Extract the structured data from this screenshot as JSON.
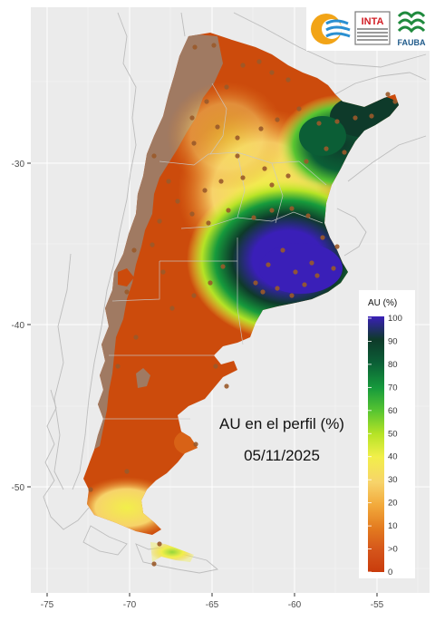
{
  "map": {
    "title_line1": "AU en el perfil (%)",
    "title_line2": "05/11/2025",
    "x_ticks": [
      "-75",
      "-70",
      "-65",
      "-60",
      "-55"
    ],
    "y_ticks": [
      "-30",
      "-40",
      "-50"
    ]
  },
  "legend": {
    "title": "AU (%)",
    "labels": [
      "100",
      "90",
      "80",
      "70",
      "60",
      "50",
      "40",
      "30",
      "20",
      "10",
      ">0",
      "0"
    ],
    "colors": [
      "#3a1fb8",
      "#0e3a2a",
      "#0b5e36",
      "#169a3c",
      "#58c531",
      "#b6e326",
      "#f2ef4a",
      "#f7d36a",
      "#f2a93b",
      "#e37a1f",
      "#d4531a",
      "#c93c0c"
    ]
  },
  "logos": {
    "inta": "INTA",
    "fauba": "FAUBA"
  },
  "colors": {
    "panel_bg": "#ebebeb",
    "no_data": "#a07a62",
    "dry": "#cc4b0c"
  }
}
